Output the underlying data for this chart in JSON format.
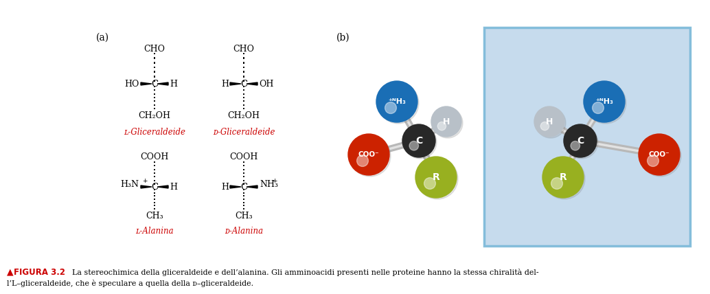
{
  "bg_color": "#ffffff",
  "fig_width": 10.34,
  "fig_height": 4.28,
  "caption_triangle": "▲",
  "caption_bold": "FIGURA 3.2",
  "caption_text": "  La stereochimica della gliceraldeide e dell’alanina. Gli amminoacidi presenti nelle proteine hanno la stessa chiralità del-",
  "caption_text2": "l’L–gliceraldeide, che è speculare a quella della ᴅ–gliceraldeide.",
  "label_a": "(a)",
  "label_b": "(b)",
  "red_color": "#cc0000",
  "blue_nh3_color": "#1a6eb5",
  "red_coo_color": "#cc2200",
  "green_r_color": "#98b020",
  "gray_h_color": "#b8c0c8",
  "dark_c_color": "#282828",
  "box_edge_color": "#7ab8d8",
  "box_face_color": "#c0d8ec"
}
